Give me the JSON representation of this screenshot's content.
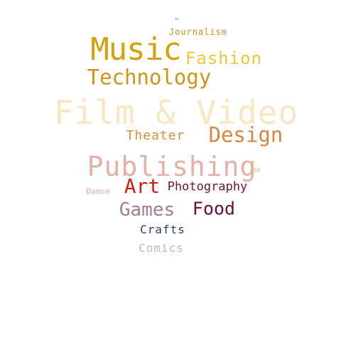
{
  "word_cloud": {
    "background": "#ffffff",
    "words": [
      {
        "key": "film",
        "text": "Film & Video",
        "color": "#f8e7c0"
      },
      {
        "key": "music",
        "text": "Music",
        "color": "#d6a20c"
      },
      {
        "key": "publishing",
        "text": "Publishing",
        "color": "#e3b1a8"
      },
      {
        "key": "technology",
        "text": "Technology",
        "color": "#cf9513"
      },
      {
        "key": "design",
        "text": "Design",
        "color": "#d9853e"
      },
      {
        "key": "fashion",
        "text": "Fashion",
        "color": "#ecc83a"
      },
      {
        "key": "food",
        "text": "Food",
        "color": "#6b0f3b"
      },
      {
        "key": "games",
        "text": "Games",
        "color": "#a47c97"
      },
      {
        "key": "art",
        "text": "Art",
        "color": "#d01e17"
      },
      {
        "key": "photo",
        "text": "Photography",
        "color": "#6c1637"
      },
      {
        "key": "theater",
        "text": "Theater",
        "color": "#d48f3a"
      },
      {
        "key": "crafts",
        "text": "Crafts",
        "color": "#2e3d6b"
      },
      {
        "key": "comics",
        "text": "Comics",
        "color": "#b2b9d8"
      },
      {
        "key": "journalism",
        "text": "Journalism",
        "color": "#d38e1a"
      },
      {
        "key": "dance",
        "text": "Dance",
        "color": "#e5a3a3"
      },
      {
        "key": "usd",
        "text": "USD",
        "color": "#f0a24e"
      },
      {
        "key": "tiny",
        "text": "Em",
        "color": "#6d79b3"
      }
    ]
  }
}
